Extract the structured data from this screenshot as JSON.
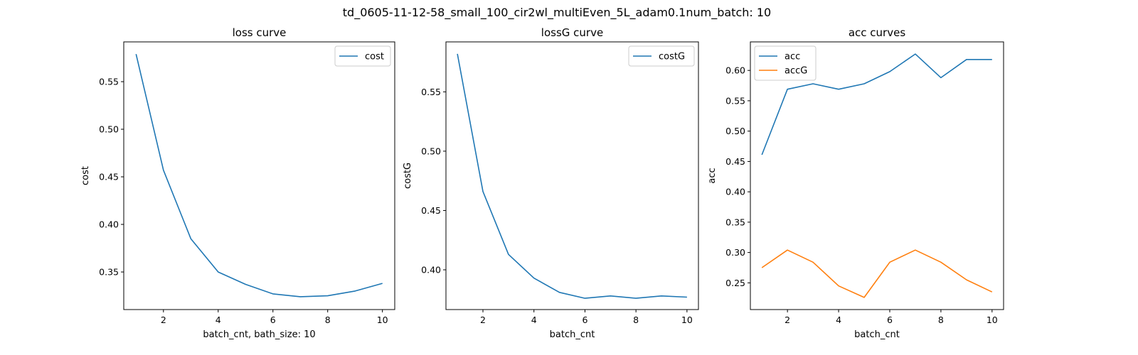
{
  "suptitle": "td_0605-11-12-58_small_100_cir2wl_multiEven_5L_adam0.1num_batch: 10",
  "chart_data": [
    {
      "type": "line",
      "title": "loss curve",
      "xlabel": "batch_cnt, bath_size: 10",
      "ylabel": "cost",
      "xlim": [
        0.55,
        10.45
      ],
      "ylim": [
        0.3105,
        0.5918
      ],
      "xticks": [
        2,
        4,
        6,
        8,
        10
      ],
      "yticks": [
        0.35,
        0.4,
        0.45,
        0.5,
        0.55
      ],
      "tick_labels_x": [
        "2",
        "4",
        "6",
        "8",
        "10"
      ],
      "tick_labels_y": [
        "0.35",
        "0.40",
        "0.45",
        "0.50",
        "0.55"
      ],
      "legend": "upper right",
      "x": [
        1,
        2,
        3,
        4,
        5,
        6,
        7,
        8,
        9,
        10
      ],
      "series": [
        {
          "name": "cost",
          "color": "#1f77b4",
          "values": [
            0.579,
            0.457,
            0.385,
            0.35,
            0.337,
            0.327,
            0.324,
            0.325,
            0.33,
            0.338
          ]
        }
      ]
    },
    {
      "type": "line",
      "title": "lossG curve",
      "xlabel": "batch_cnt",
      "ylabel": "costG",
      "xlim": [
        0.55,
        10.45
      ],
      "ylim": [
        0.3665,
        0.5921
      ],
      "xticks": [
        2,
        4,
        6,
        8,
        10
      ],
      "yticks": [
        0.4,
        0.45,
        0.5,
        0.55
      ],
      "tick_labels_x": [
        "2",
        "4",
        "6",
        "8",
        "10"
      ],
      "tick_labels_y": [
        "0.40",
        "0.45",
        "0.50",
        "0.55"
      ],
      "legend": "upper right",
      "x": [
        1,
        2,
        3,
        4,
        5,
        6,
        7,
        8,
        9,
        10
      ],
      "series": [
        {
          "name": "costG",
          "color": "#1f77b4",
          "values": [
            0.582,
            0.466,
            0.413,
            0.393,
            0.381,
            0.376,
            0.378,
            0.376,
            0.378,
            0.377
          ]
        }
      ]
    },
    {
      "type": "line",
      "title": "acc curves",
      "xlabel": "batch_cnt",
      "ylabel": "acc",
      "xlim": [
        0.55,
        10.45
      ],
      "ylim": [
        0.206,
        0.647
      ],
      "xticks": [
        2,
        4,
        6,
        8,
        10
      ],
      "yticks": [
        0.25,
        0.3,
        0.35,
        0.4,
        0.45,
        0.5,
        0.55,
        0.6
      ],
      "tick_labels_x": [
        "2",
        "4",
        "6",
        "8",
        "10"
      ],
      "tick_labels_y": [
        "0.25",
        "0.30",
        "0.35",
        "0.40",
        "0.45",
        "0.50",
        "0.55",
        "0.60"
      ],
      "legend": "upper left",
      "x": [
        1,
        2,
        3,
        4,
        5,
        6,
        7,
        8,
        9,
        10
      ],
      "series": [
        {
          "name": "acc",
          "color": "#1f77b4",
          "values": [
            0.461,
            0.569,
            0.578,
            0.569,
            0.578,
            0.598,
            0.627,
            0.588,
            0.618,
            0.618
          ]
        },
        {
          "name": "accG",
          "color": "#ff7f0e",
          "values": [
            0.275,
            0.304,
            0.284,
            0.245,
            0.226,
            0.284,
            0.304,
            0.284,
            0.255,
            0.235
          ]
        }
      ]
    }
  ]
}
